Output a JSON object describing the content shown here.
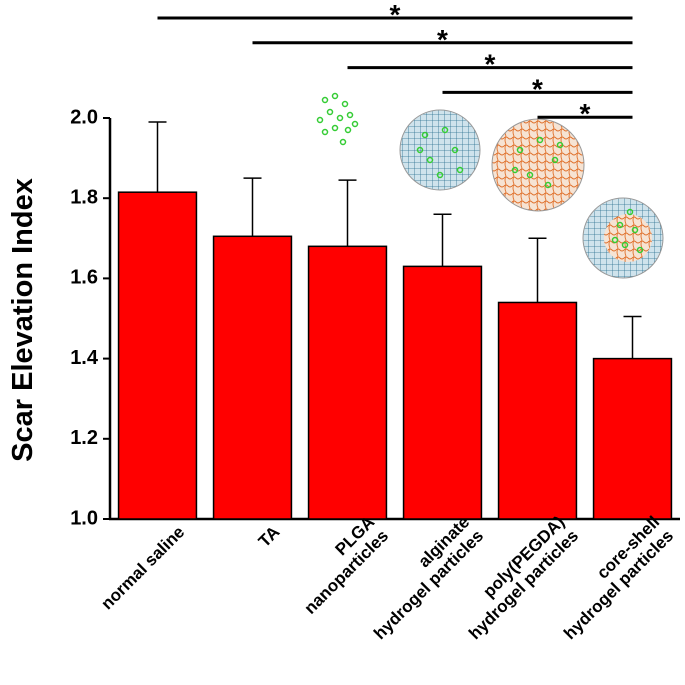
{
  "chart_data": {
    "type": "bar",
    "y_label": "Scar Elevation Index",
    "categories": [
      "normal saline",
      "TA",
      "PLGA\nnanoparticles",
      "alginate\nhydrogel particles",
      "poly(PEGDA)\nhydrogel particles",
      "core-shell\nhydrogel particles"
    ],
    "values": [
      1.815,
      1.705,
      1.68,
      1.63,
      1.54,
      1.4
    ],
    "errors": [
      0.175,
      0.145,
      0.165,
      0.13,
      0.16,
      0.105
    ],
    "color": "#ff0000",
    "ylim": [
      1.0,
      2.0
    ],
    "yticks": [
      {
        "value": 1.0,
        "label": "1.0"
      },
      1.2,
      1.4,
      1.6,
      1.8,
      {
        "value": 2.0,
        "label": "2.0"
      }
    ],
    "annotations": [
      {
        "text": "*",
        "from": 0,
        "to": 5
      },
      {
        "text": "*",
        "from": 1,
        "to": 5
      },
      {
        "text": "*",
        "from": 2,
        "to": 5
      },
      {
        "text": "*",
        "from": 3,
        "to": 5
      },
      {
        "text": "*",
        "from": 4,
        "to": 5
      }
    ]
  }
}
